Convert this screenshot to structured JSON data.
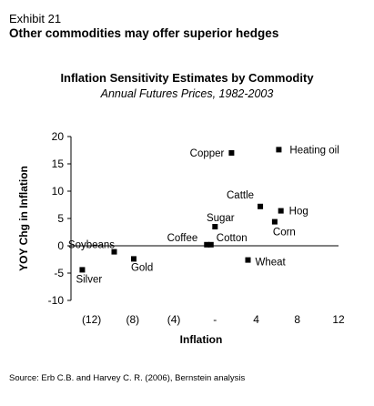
{
  "header": {
    "exhibit": "Exhibit 21",
    "subtitle": "Other commodities may offer superior hedges"
  },
  "source": "Source: Erb C.B. and Harvey C. R. (2006), Bernstein analysis",
  "chart_data": {
    "type": "scatter",
    "title": "Inflation Sensitivity Estimates by Commodity",
    "subtitle": "Annual Futures Prices, 1982-2003",
    "xlabel": "Inflation",
    "ylabel": "YOY Chg in Inflation",
    "xlim": [
      -14,
      12
    ],
    "ylim": [
      -10,
      20
    ],
    "x_ticks": [
      -12,
      -8,
      -4,
      0,
      4,
      8,
      12
    ],
    "x_tick_labels": [
      "(12)",
      "(8)",
      "(4)",
      "-",
      "4",
      "8",
      "12"
    ],
    "y_ticks": [
      -10,
      -5,
      0,
      5,
      10,
      15,
      20
    ],
    "y_tick_labels": [
      "-10",
      "-5",
      "0",
      "5",
      "10",
      "15",
      "20"
    ],
    "grid": false,
    "marker_color": "#000000",
    "points": [
      {
        "label": "Copper",
        "x": 1.6,
        "y": 17.0
      },
      {
        "label": "Heating oil",
        "x": 6.2,
        "y": 17.6
      },
      {
        "label": "Cattle",
        "x": 4.4,
        "y": 7.2
      },
      {
        "label": "Hog",
        "x": 6.4,
        "y": 6.4
      },
      {
        "label": "Corn",
        "x": 5.8,
        "y": 4.4
      },
      {
        "label": "Sugar",
        "x": 0.0,
        "y": 3.5
      },
      {
        "label": "Soybeans",
        "x": -9.8,
        "y": -1.1
      },
      {
        "label": "Coffee",
        "x": -0.8,
        "y": 0.2
      },
      {
        "label": "Cotton",
        "x": -0.4,
        "y": 0.2
      },
      {
        "label": "Gold",
        "x": -7.9,
        "y": -2.4
      },
      {
        "label": "Silver",
        "x": -12.9,
        "y": -4.4
      },
      {
        "label": "Wheat",
        "x": 3.2,
        "y": -2.6
      }
    ]
  }
}
